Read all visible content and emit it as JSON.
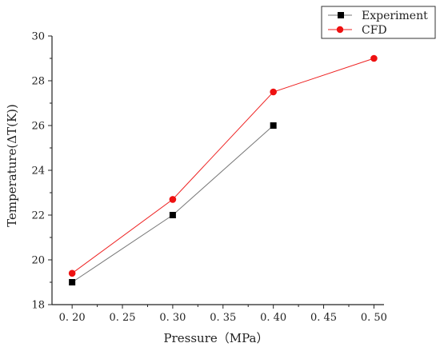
{
  "chart_data": {
    "type": "line",
    "title": "",
    "xlabel": "Pressure（MPa）",
    "ylabel": "Temperature(ΔT(K))",
    "xlim": [
      0.18,
      0.51
    ],
    "ylim": [
      18,
      30
    ],
    "x_ticks": [
      0.2,
      0.25,
      0.3,
      0.35,
      0.4,
      0.45,
      0.5
    ],
    "x_tick_labels": [
      "0. 20",
      "0. 25",
      "0. 30",
      "0. 35",
      "0. 40",
      "0. 45",
      "0. 50"
    ],
    "y_ticks": [
      18,
      20,
      22,
      24,
      26,
      28,
      30
    ],
    "y_tick_labels": [
      "18",
      "20",
      "22",
      "24",
      "26",
      "28",
      "30"
    ],
    "legend_position": "top-right",
    "grid": false,
    "series": [
      {
        "name": "Experiment",
        "marker": "square",
        "line_color": "#777777",
        "marker_color": "#000000",
        "x": [
          0.2,
          0.3,
          0.4
        ],
        "y": [
          19.0,
          22.0,
          26.0
        ]
      },
      {
        "name": "CFD",
        "marker": "circle",
        "line_color": "#ee2222",
        "marker_color": "#ee1111",
        "x": [
          0.2,
          0.3,
          0.4,
          0.5
        ],
        "y": [
          19.4,
          22.7,
          27.5,
          29.0
        ]
      }
    ]
  }
}
